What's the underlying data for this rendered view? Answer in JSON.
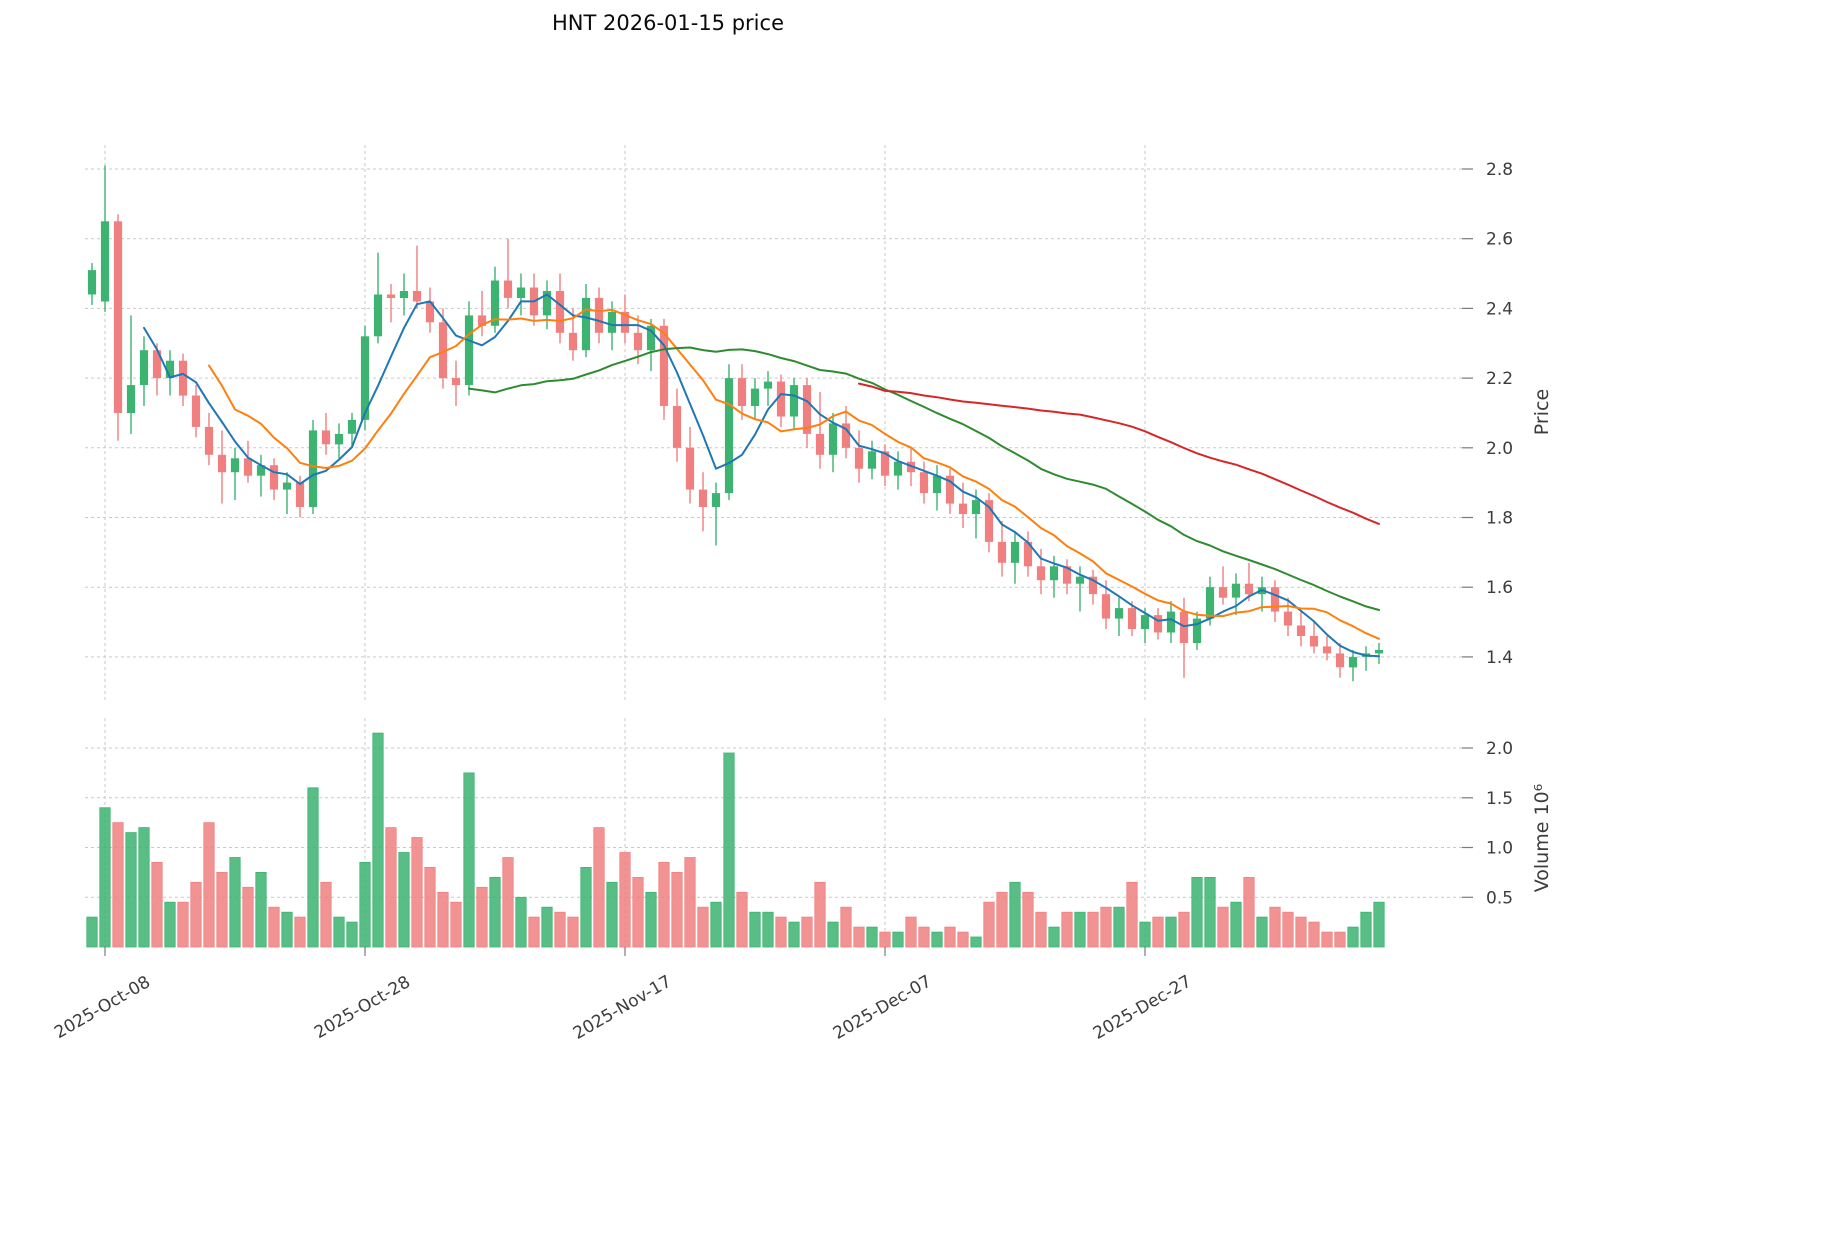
{
  "colors": {
    "up": "#3CB371",
    "down": "#F08080",
    "ma_fast": "#1f77b4",
    "ma_mid": "#ff7f0e",
    "ma_slow": "#2f8b2f",
    "ma_long": "#d62728",
    "grid": "#c9c9c9",
    "text": "#3c3c3c"
  },
  "chart_data": {
    "type": "candlestick+volume",
    "symbol": "HNT",
    "title": "HNT  2026-01-15  price",
    "ylabel": "Price",
    "y2label": "Volume  10⁶",
    "volume_unit": "10^6",
    "grid": true,
    "price_ticks": [
      1.4,
      1.6,
      1.8,
      2.0,
      2.2,
      2.4,
      2.6,
      2.8
    ],
    "volume_ticks": [
      0.5,
      1.0,
      1.5,
      2.0
    ],
    "price_ylim": [
      1.29,
      2.87
    ],
    "volume_ylim": [
      0,
      2.3
    ],
    "x_tick_labels": [
      "2025-Oct-08",
      "2025-Oct-28",
      "2025-Nov-17",
      "2025-Dec-07",
      "2025-Dec-27"
    ],
    "x_tick_dates": [
      "2025-10-08",
      "2025-10-28",
      "2025-11-17",
      "2025-12-07",
      "2025-12-27"
    ],
    "moving_averages": [
      {
        "name": "SMA5",
        "window": 5,
        "color_key": "ma_fast"
      },
      {
        "name": "SMA10",
        "window": 10,
        "color_key": "ma_mid"
      },
      {
        "name": "SMA30",
        "window": 30,
        "color_key": "ma_slow"
      },
      {
        "name": "SMA60",
        "window": 60,
        "color_key": "ma_long"
      }
    ],
    "dates": [
      "2025-10-07",
      "2025-10-08",
      "2025-10-09",
      "2025-10-10",
      "2025-10-11",
      "2025-10-12",
      "2025-10-13",
      "2025-10-14",
      "2025-10-15",
      "2025-10-16",
      "2025-10-17",
      "2025-10-18",
      "2025-10-19",
      "2025-10-20",
      "2025-10-21",
      "2025-10-22",
      "2025-10-23",
      "2025-10-24",
      "2025-10-25",
      "2025-10-26",
      "2025-10-27",
      "2025-10-28",
      "2025-10-29",
      "2025-10-30",
      "2025-10-31",
      "2025-11-01",
      "2025-11-02",
      "2025-11-03",
      "2025-11-04",
      "2025-11-05",
      "2025-11-06",
      "2025-11-07",
      "2025-11-08",
      "2025-11-09",
      "2025-11-10",
      "2025-11-11",
      "2025-11-12",
      "2025-11-13",
      "2025-11-14",
      "2025-11-15",
      "2025-11-16",
      "2025-11-17",
      "2025-11-18",
      "2025-11-19",
      "2025-11-20",
      "2025-11-21",
      "2025-11-22",
      "2025-11-23",
      "2025-11-24",
      "2025-11-25",
      "2025-11-26",
      "2025-11-27",
      "2025-11-28",
      "2025-11-29",
      "2025-11-30",
      "2025-12-01",
      "2025-12-02",
      "2025-12-03",
      "2025-12-04",
      "2025-12-05",
      "2025-12-06",
      "2025-12-07",
      "2025-12-08",
      "2025-12-09",
      "2025-12-10",
      "2025-12-11",
      "2025-12-12",
      "2025-12-13",
      "2025-12-14",
      "2025-12-15",
      "2025-12-16",
      "2025-12-17",
      "2025-12-18",
      "2025-12-19",
      "2025-12-20",
      "2025-12-21",
      "2025-12-22",
      "2025-12-23",
      "2025-12-24",
      "2025-12-25",
      "2025-12-26",
      "2025-12-27",
      "2025-12-28",
      "2025-12-29",
      "2025-12-30",
      "2025-12-31",
      "2026-01-01",
      "2026-01-02",
      "2026-01-03",
      "2026-01-04",
      "2026-01-05",
      "2026-01-06",
      "2026-01-07",
      "2026-01-08",
      "2026-01-09",
      "2026-01-10",
      "2026-01-11",
      "2026-01-12",
      "2026-01-13",
      "2026-01-14"
    ],
    "open": [
      2.44,
      2.42,
      2.65,
      2.1,
      2.18,
      2.28,
      2.2,
      2.25,
      2.15,
      2.06,
      1.98,
      1.93,
      1.97,
      1.92,
      1.95,
      1.88,
      1.9,
      1.83,
      2.05,
      2.01,
      2.04,
      2.08,
      2.32,
      2.44,
      2.43,
      2.45,
      2.42,
      2.36,
      2.2,
      2.18,
      2.38,
      2.35,
      2.48,
      2.43,
      2.46,
      2.38,
      2.45,
      2.33,
      2.28,
      2.43,
      2.33,
      2.39,
      2.33,
      2.28,
      2.35,
      2.12,
      2.0,
      1.88,
      1.83,
      1.87,
      2.2,
      2.12,
      2.17,
      2.19,
      2.09,
      2.18,
      2.04,
      1.98,
      2.07,
      2.0,
      1.94,
      1.99,
      1.92,
      1.96,
      1.93,
      1.87,
      1.92,
      1.84,
      1.81,
      1.85,
      1.73,
      1.67,
      1.73,
      1.66,
      1.62,
      1.66,
      1.61,
      1.63,
      1.58,
      1.51,
      1.54,
      1.48,
      1.52,
      1.47,
      1.53,
      1.44,
      1.51,
      1.6,
      1.57,
      1.61,
      1.58,
      1.6,
      1.53,
      1.49,
      1.46,
      1.43,
      1.41,
      1.37,
      1.4,
      1.41
    ],
    "high": [
      2.53,
      2.81,
      2.67,
      2.38,
      2.32,
      2.3,
      2.28,
      2.27,
      2.18,
      2.1,
      2.05,
      2.0,
      2.02,
      1.98,
      1.97,
      1.93,
      1.92,
      2.08,
      2.1,
      2.07,
      2.1,
      2.35,
      2.56,
      2.47,
      2.5,
      2.58,
      2.46,
      2.4,
      2.25,
      2.42,
      2.45,
      2.52,
      2.6,
      2.5,
      2.5,
      2.48,
      2.5,
      2.4,
      2.47,
      2.46,
      2.42,
      2.44,
      2.38,
      2.37,
      2.37,
      2.17,
      2.06,
      1.93,
      1.9,
      2.24,
      2.24,
      2.2,
      2.22,
      2.21,
      2.2,
      2.2,
      2.16,
      2.1,
      2.12,
      2.05,
      2.02,
      2.01,
      1.99,
      2.0,
      1.96,
      1.95,
      1.94,
      1.9,
      1.88,
      1.87,
      1.79,
      1.76,
      1.76,
      1.71,
      1.69,
      1.68,
      1.66,
      1.65,
      1.62,
      1.57,
      1.56,
      1.54,
      1.54,
      1.56,
      1.57,
      1.53,
      1.63,
      1.66,
      1.64,
      1.67,
      1.63,
      1.62,
      1.57,
      1.53,
      1.5,
      1.46,
      1.44,
      1.42,
      1.43,
      1.44
    ],
    "low": [
      2.41,
      2.39,
      2.02,
      2.04,
      2.12,
      2.15,
      2.15,
      2.12,
      2.03,
      1.95,
      1.84,
      1.85,
      1.9,
      1.86,
      1.85,
      1.81,
      1.8,
      1.81,
      1.98,
      1.97,
      2.0,
      2.05,
      2.3,
      2.36,
      2.38,
      2.4,
      2.33,
      2.17,
      2.12,
      2.15,
      2.32,
      2.33,
      2.4,
      2.38,
      2.35,
      2.34,
      2.3,
      2.25,
      2.26,
      2.3,
      2.28,
      2.3,
      2.24,
      2.22,
      2.08,
      1.96,
      1.84,
      1.76,
      1.72,
      1.85,
      2.08,
      2.08,
      2.12,
      2.06,
      2.05,
      2.0,
      1.94,
      1.93,
      1.97,
      1.9,
      1.91,
      1.89,
      1.88,
      1.89,
      1.84,
      1.82,
      1.81,
      1.77,
      1.74,
      1.7,
      1.63,
      1.61,
      1.63,
      1.58,
      1.57,
      1.58,
      1.53,
      1.55,
      1.48,
      1.46,
      1.46,
      1.44,
      1.45,
      1.44,
      1.34,
      1.42,
      1.49,
      1.55,
      1.52,
      1.56,
      1.53,
      1.5,
      1.46,
      1.43,
      1.41,
      1.39,
      1.34,
      1.33,
      1.36,
      1.38
    ],
    "close": [
      2.51,
      2.65,
      2.1,
      2.18,
      2.28,
      2.2,
      2.25,
      2.15,
      2.06,
      1.98,
      1.93,
      1.97,
      1.92,
      1.95,
      1.88,
      1.9,
      1.83,
      2.05,
      2.01,
      2.04,
      2.08,
      2.32,
      2.44,
      2.43,
      2.45,
      2.42,
      2.36,
      2.2,
      2.18,
      2.38,
      2.35,
      2.48,
      2.43,
      2.46,
      2.38,
      2.45,
      2.33,
      2.28,
      2.43,
      2.33,
      2.39,
      2.33,
      2.28,
      2.35,
      2.12,
      2.0,
      1.88,
      1.83,
      1.87,
      2.2,
      2.12,
      2.17,
      2.19,
      2.09,
      2.18,
      2.04,
      1.98,
      2.07,
      2.0,
      1.94,
      1.99,
      1.92,
      1.96,
      1.93,
      1.87,
      1.92,
      1.84,
      1.81,
      1.85,
      1.73,
      1.67,
      1.73,
      1.66,
      1.62,
      1.66,
      1.61,
      1.63,
      1.58,
      1.51,
      1.54,
      1.48,
      1.52,
      1.47,
      1.53,
      1.44,
      1.51,
      1.6,
      1.57,
      1.61,
      1.58,
      1.6,
      1.53,
      1.49,
      1.46,
      1.43,
      1.41,
      1.37,
      1.4,
      1.41,
      1.42
    ],
    "volume": [
      0.3,
      1.4,
      1.25,
      1.15,
      1.2,
      0.85,
      0.45,
      0.45,
      0.65,
      1.25,
      0.75,
      0.9,
      0.6,
      0.75,
      0.4,
      0.35,
      0.3,
      1.6,
      0.65,
      0.3,
      0.25,
      0.85,
      2.15,
      1.2,
      0.95,
      1.1,
      0.8,
      0.55,
      0.45,
      1.75,
      0.6,
      0.7,
      0.9,
      0.5,
      0.3,
      0.4,
      0.35,
      0.3,
      0.8,
      1.2,
      0.65,
      0.95,
      0.7,
      0.55,
      0.85,
      0.75,
      0.9,
      0.4,
      0.45,
      1.95,
      0.55,
      0.35,
      0.35,
      0.3,
      0.25,
      0.3,
      0.65,
      0.25,
      0.4,
      0.2,
      0.2,
      0.15,
      0.15,
      0.3,
      0.2,
      0.15,
      0.2,
      0.15,
      0.1,
      0.45,
      0.55,
      0.65,
      0.55,
      0.35,
      0.2,
      0.35,
      0.35,
      0.35,
      0.4,
      0.4,
      0.65,
      0.25,
      0.3,
      0.3,
      0.35,
      0.7,
      0.7,
      0.4,
      0.45,
      0.7,
      0.3,
      0.4,
      0.35,
      0.3,
      0.25,
      0.15,
      0.15,
      0.2,
      0.35,
      0.45
    ]
  }
}
